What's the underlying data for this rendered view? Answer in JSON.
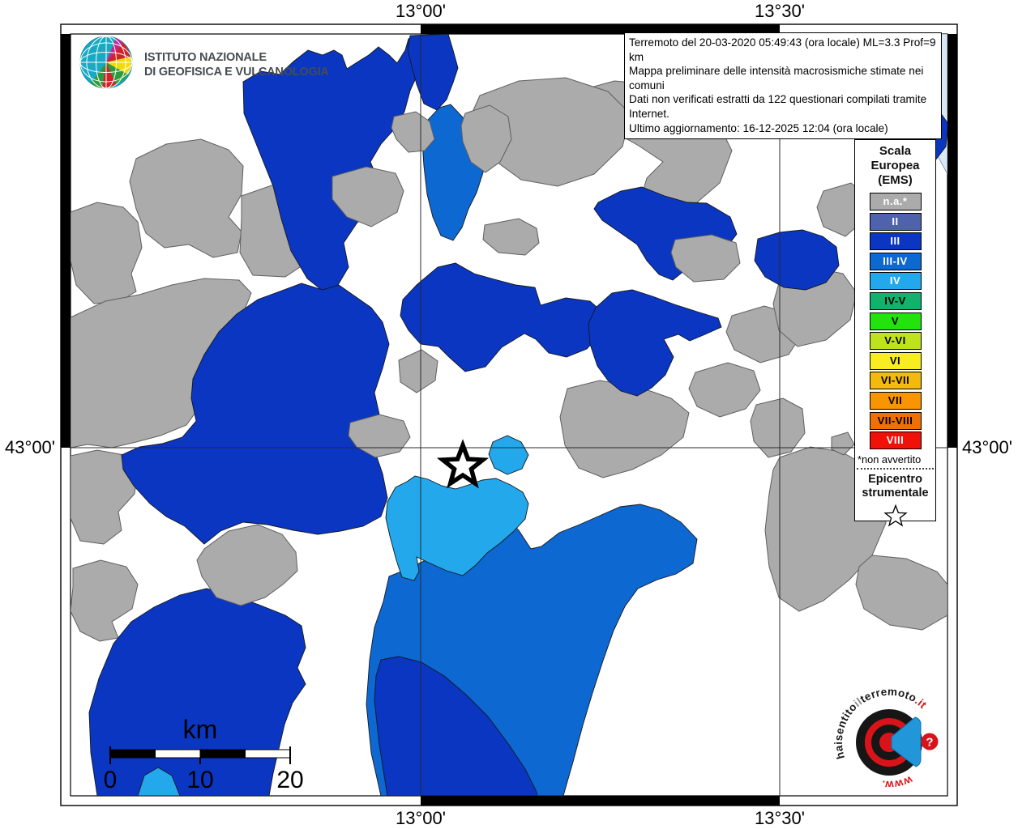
{
  "axis": {
    "top_left": "13°00'",
    "top_right": "13°30'",
    "bottom_left": "13°00'",
    "bottom_right": "13°30'",
    "left": "43°00'",
    "right": "43°00'"
  },
  "header": {
    "ingv_line1": "ISTITUTO NAZIONALE",
    "ingv_line2": "DI GEOFISICA E VULCANOLOGIA"
  },
  "info_box": {
    "line1": "Terremoto del 20-03-2020 05:49:43 (ora locale) ML=3.3 Prof=9 km",
    "line2": "Mappa preliminare delle intensità macrosismiche stimate nei comuni",
    "line3": "Dati non verificati estratti da 122 questionari compilati tramite Internet.",
    "line4": "Ultimo aggiornamento: 16-12-2025 12:04 (ora locale)"
  },
  "legend": {
    "title_lines": [
      "Scala",
      "Europea",
      "(EMS)"
    ],
    "entries": [
      {
        "label": "n.a.*",
        "color": "#ABABAB",
        "text": "#FFFFFF"
      },
      {
        "label": "II",
        "color": "#4E63AC",
        "text": "#FFFFFF"
      },
      {
        "label": "III",
        "color": "#0A36C2",
        "text": "#FFFFFF"
      },
      {
        "label": "III-IV",
        "color": "#0D68D2",
        "text": "#FFFFFF"
      },
      {
        "label": "IV",
        "color": "#23A8EC",
        "text": "#FFFFFF"
      },
      {
        "label": "IV-V",
        "color": "#12B26C",
        "text": "#000000"
      },
      {
        "label": "V",
        "color": "#22E30B",
        "text": "#000000"
      },
      {
        "label": "V-VI",
        "color": "#BFE21F",
        "text": "#000000"
      },
      {
        "label": "VI",
        "color": "#F8ED22",
        "text": "#000000"
      },
      {
        "label": "VI-VII",
        "color": "#F4BA0B",
        "text": "#000000"
      },
      {
        "label": "VII",
        "color": "#F79502",
        "text": "#000000"
      },
      {
        "label": "VII-VIII",
        "color": "#EF7004",
        "text": "#000000"
      },
      {
        "label": "VIII",
        "color": "#F01108",
        "text": "#FFFFFF"
      }
    ],
    "footnote": "*non avvertito",
    "epicenter_line1": "Epicentro",
    "epicenter_line2": "strumentale"
  },
  "scale_bar": {
    "unit": "km",
    "tick0": "0",
    "tick10": "10",
    "tick20": "20"
  },
  "map": {
    "palette": {
      "na": "#ABABAB",
      "III": "#0A36C2",
      "III_IV": "#0D68D2",
      "IV": "#23A8EC",
      "sea": "#D9E8F4"
    }
  },
  "watermark": {
    "arc_segments": [
      {
        "text": "haisentito",
        "color": "#1A1A1A"
      },
      {
        "text": "il",
        "color": "#8A8A8A"
      },
      {
        "text": "terremoto",
        "color": "#1A1A1A"
      },
      {
        "text": ".it",
        "color": "#D8141A"
      }
    ],
    "bottom_segment": {
      "text": "www.",
      "color": "#D8141A"
    },
    "qmark": "?"
  }
}
